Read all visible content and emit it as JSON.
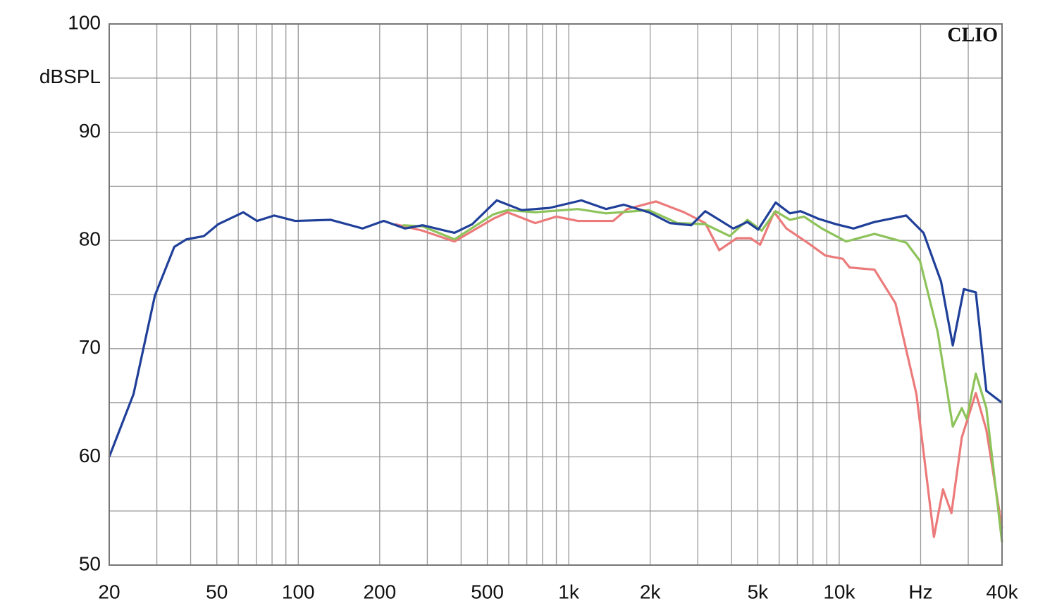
{
  "chart_data": {
    "type": "line",
    "brand": "CLIO",
    "xscale": "log",
    "grid": true,
    "xlim": [
      20,
      40000
    ],
    "ylim": [
      50,
      100
    ],
    "xticks": [
      20,
      50,
      100,
      200,
      500,
      {
        "value": 1000,
        "label": "1k"
      },
      {
        "value": 2000,
        "label": "2k"
      },
      {
        "value": 5000,
        "label": "5k"
      },
      {
        "value": 10000,
        "label": "10k"
      },
      {
        "value": 20000,
        "label": "Hz"
      },
      {
        "value": 40000,
        "label": "40k"
      }
    ],
    "xticks_minor": [
      30,
      40,
      60,
      70,
      80,
      90,
      300,
      400,
      600,
      700,
      800,
      900,
      3000,
      4000,
      6000,
      7000,
      8000,
      9000,
      30000
    ],
    "yticks": [
      50,
      60,
      70,
      80,
      90,
      {
        "value": 95,
        "label": "dBSPL"
      },
      100
    ],
    "yticks_minor": [
      55,
      65,
      75,
      85
    ],
    "series": [
      {
        "color": "#ec7a7a",
        "x": [
          228,
          288,
          378,
          526,
          594,
          752,
          900,
          1081,
          1459,
          1646,
          2100,
          2670,
          3196,
          3600,
          4180,
          4710,
          5100,
          5750,
          6380,
          7630,
          8890,
          10310,
          10930,
          13500,
          16140,
          19300,
          22400,
          24200,
          26000,
          28400,
          32000,
          35000,
          40000
        ],
        "values": [
          81.5,
          80.9,
          79.9,
          82.0,
          82.6,
          81.6,
          82.2,
          81.8,
          81.8,
          82.9,
          83.6,
          82.6,
          81.6,
          79.1,
          80.2,
          80.2,
          79.6,
          82.6,
          81.1,
          79.8,
          78.6,
          78.3,
          77.5,
          77.3,
          74.2,
          65.8,
          52.6,
          57.0,
          54.8,
          61.8,
          65.9,
          62.5,
          53.4
        ]
      },
      {
        "color": "#8dc35a",
        "x": [
          243,
          288,
          378,
          526,
          594,
          752,
          1081,
          1374,
          1976,
          2520,
          3196,
          3938,
          4576,
          5170,
          5822,
          6573,
          7410,
          8630,
          10610,
          13500,
          17700,
          19900,
          23100,
          26300,
          28400,
          29600,
          32000,
          35000,
          40000
        ],
        "values": [
          81.4,
          81.3,
          80.1,
          82.4,
          82.8,
          82.6,
          82.9,
          82.5,
          82.8,
          81.6,
          81.5,
          80.4,
          81.9,
          80.9,
          82.7,
          81.9,
          82.2,
          81.1,
          79.9,
          80.6,
          79.8,
          78.1,
          71.6,
          62.8,
          64.5,
          63.5,
          67.7,
          64.5,
          52.1
        ]
      },
      {
        "color": "#1f3f99",
        "x": [
          20,
          24.6,
          29.5,
          34.8,
          38.6,
          44.8,
          50.6,
          62.6,
          70.4,
          81.5,
          97.4,
          132,
          173,
          207,
          248,
          288,
          378,
          440,
          542,
          670,
          849,
          1114,
          1374,
          1596,
          1976,
          2368,
          2836,
          3196,
          4057,
          4576,
          5017,
          5822,
          6573,
          7200,
          8380,
          9735,
          11300,
          13500,
          17700,
          20500,
          23800,
          26300,
          28900,
          32000,
          35000,
          40000
        ],
        "values": [
          60.0,
          65.8,
          74.9,
          79.4,
          80.1,
          80.4,
          81.5,
          82.6,
          81.8,
          82.3,
          81.8,
          81.9,
          81.1,
          81.8,
          81.1,
          81.4,
          80.7,
          81.5,
          83.7,
          82.8,
          83.0,
          83.7,
          82.9,
          83.3,
          82.6,
          81.6,
          81.4,
          82.7,
          81.1,
          81.7,
          81.0,
          83.5,
          82.5,
          82.7,
          82.0,
          81.5,
          81.1,
          81.7,
          82.3,
          80.7,
          76.2,
          70.3,
          75.5,
          75.2,
          66.1,
          65.0
        ]
      }
    ]
  }
}
